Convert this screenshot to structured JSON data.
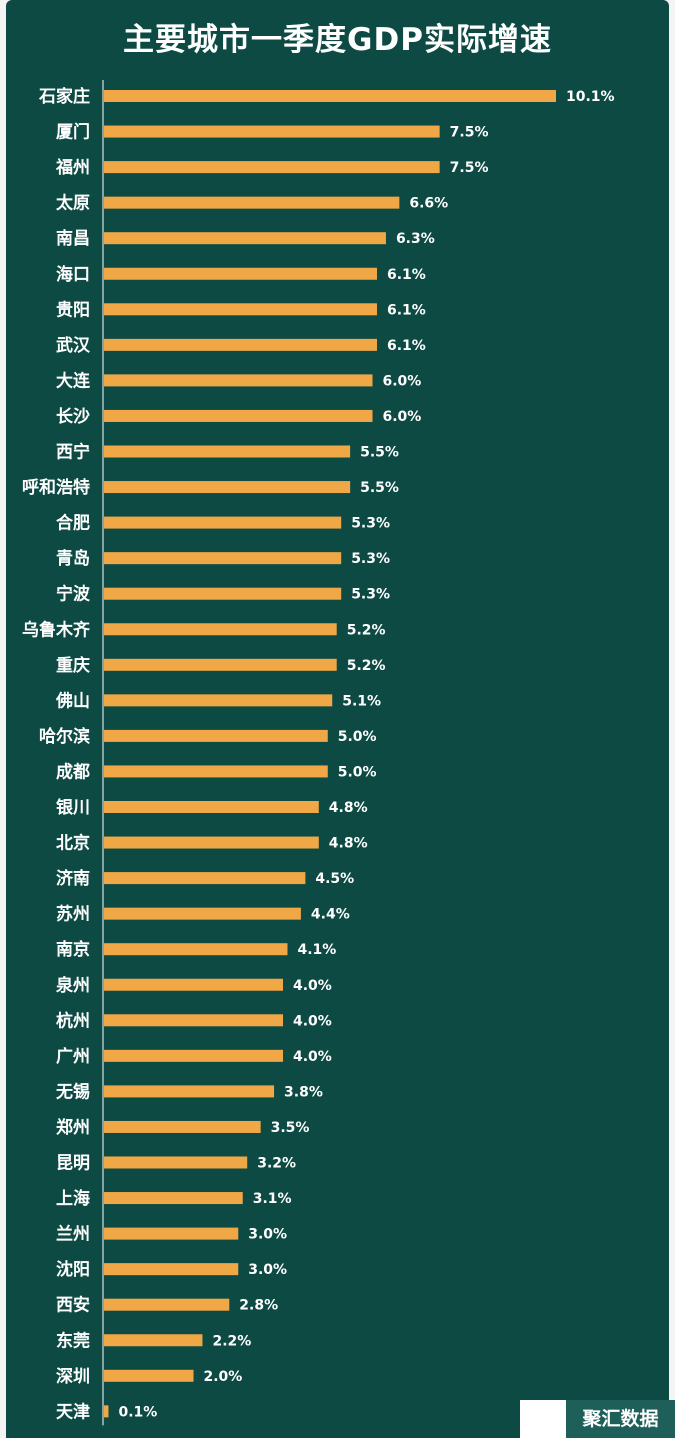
{
  "title": "主要城市一季度GDP实际增速",
  "watermark": "聚汇数据",
  "colors": {
    "background": "#0d4a44",
    "bar": "#f0a847",
    "text": "#ffffff"
  },
  "chart_data": {
    "type": "bar",
    "orientation": "horizontal",
    "title": "主要城市一季度GDP实际增速",
    "xlabel": "",
    "ylabel": "",
    "grid": false,
    "legend": "none",
    "xlim": [
      0,
      10.1
    ],
    "categories": [
      "石家庄",
      "厦门",
      "福州",
      "太原",
      "南昌",
      "海口",
      "贵阳",
      "武汉",
      "大连",
      "长沙",
      "西宁",
      "呼和浩特",
      "合肥",
      "青岛",
      "宁波",
      "乌鲁木齐",
      "重庆",
      "佛山",
      "哈尔滨",
      "成都",
      "银川",
      "北京",
      "济南",
      "苏州",
      "南京",
      "泉州",
      "杭州",
      "广州",
      "无锡",
      "郑州",
      "昆明",
      "上海",
      "兰州",
      "沈阳",
      "西安",
      "东莞",
      "深圳",
      "天津"
    ],
    "values": [
      10.1,
      7.5,
      7.5,
      6.6,
      6.3,
      6.1,
      6.1,
      6.1,
      6.0,
      6.0,
      5.5,
      5.5,
      5.3,
      5.3,
      5.3,
      5.2,
      5.2,
      5.1,
      5.0,
      5.0,
      4.8,
      4.8,
      4.5,
      4.4,
      4.1,
      4.0,
      4.0,
      4.0,
      3.8,
      3.5,
      3.2,
      3.1,
      3.0,
      3.0,
      2.8,
      2.2,
      2.0,
      0.1
    ],
    "value_labels": [
      "10.1%",
      "7.5%",
      "7.5%",
      "6.6%",
      "6.3%",
      "6.1%",
      "6.1%",
      "6.1%",
      "6.0%",
      "6.0%",
      "5.5%",
      "5.5%",
      "5.3%",
      "5.3%",
      "5.3%",
      "5.2%",
      "5.2%",
      "5.1%",
      "5.0%",
      "5.0%",
      "4.8%",
      "4.8%",
      "4.5%",
      "4.4%",
      "4.1%",
      "4.0%",
      "4.0%",
      "4.0%",
      "3.8%",
      "3.5%",
      "3.2%",
      "3.1%",
      "3.0%",
      "3.0%",
      "2.8%",
      "2.2%",
      "2.0%",
      "0.1%"
    ]
  }
}
